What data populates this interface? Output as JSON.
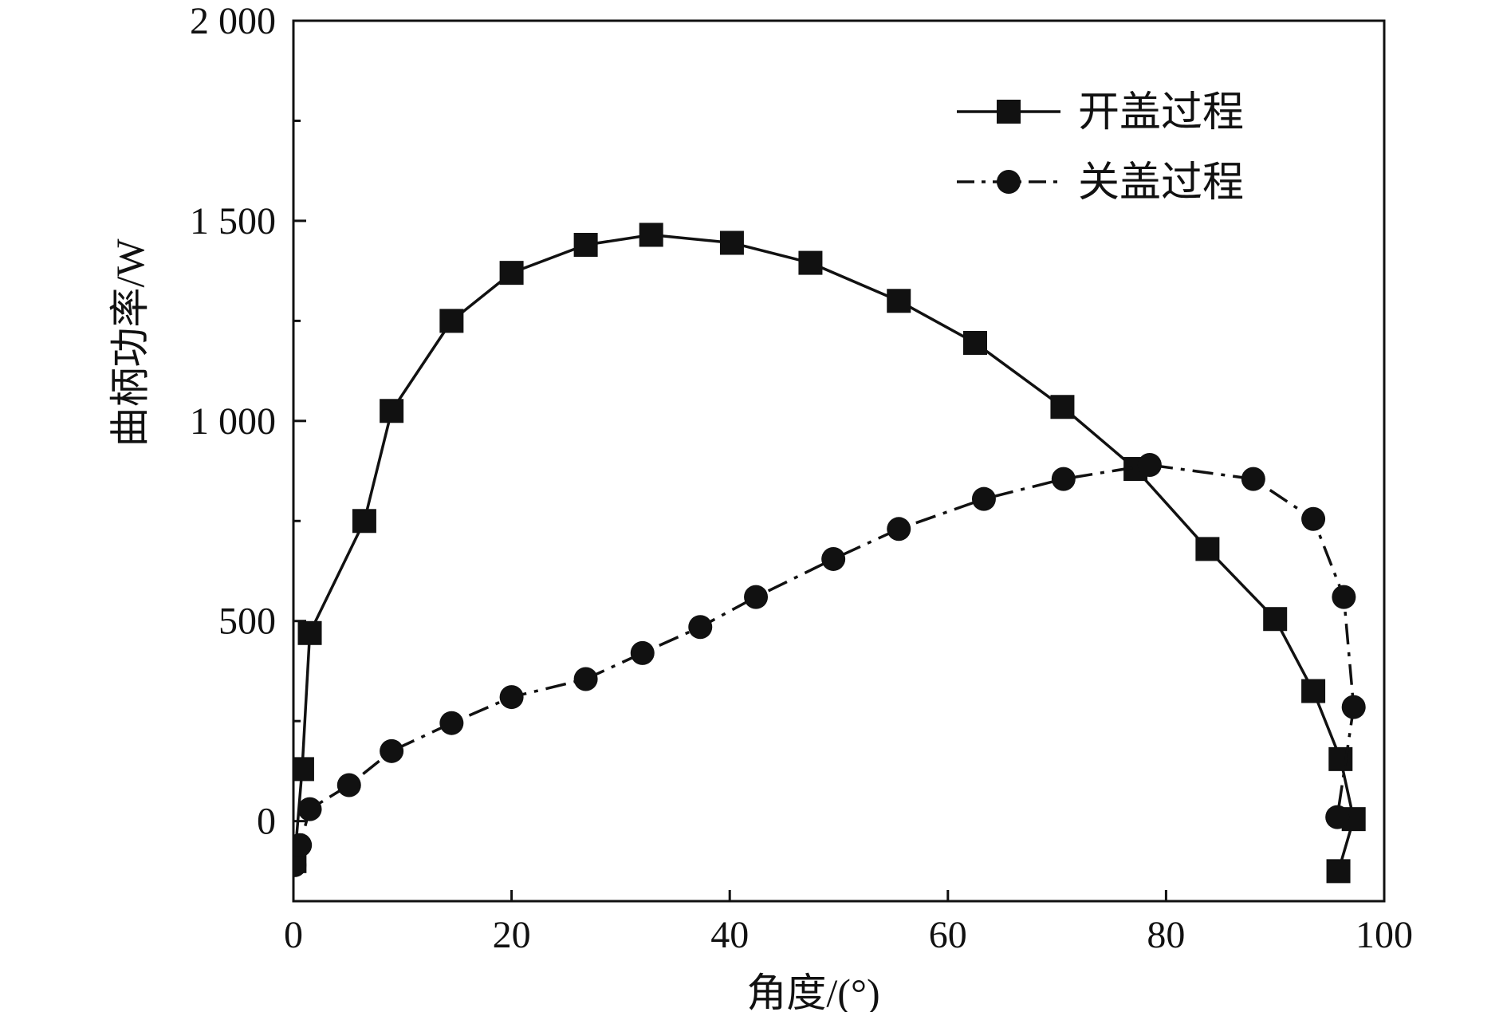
{
  "chart_data": {
    "type": "line",
    "title": "",
    "xlabel": "角度/(°)",
    "ylabel": "曲柄功率/W",
    "xlim": [
      0,
      100
    ],
    "ylim": [
      -200,
      2000
    ],
    "xticks": [
      0,
      20,
      40,
      60,
      80,
      100
    ],
    "xtick_labels": [
      "0",
      "20",
      "40",
      "60",
      "80",
      "100"
    ],
    "yticks": [
      0,
      500,
      1000,
      1500,
      2000
    ],
    "ytick_labels": [
      "0",
      "500",
      "1 000",
      "1 500",
      "2 000"
    ],
    "y_minor_step": 250,
    "grid": false,
    "legend_position": "top-right",
    "series": [
      {
        "name": "开盖过程",
        "line_style": "solid",
        "marker": "square",
        "color": "#111111",
        "x": [
          0.1,
          0.8,
          1.5,
          6.5,
          9.0,
          14.5,
          20.0,
          26.8,
          32.8,
          40.2,
          47.4,
          55.5,
          62.5,
          70.5,
          77.2,
          83.8,
          90.0,
          93.5,
          96.0,
          97.2,
          95.8
        ],
        "y": [
          -100,
          130,
          470,
          750,
          1025,
          1250,
          1370,
          1440,
          1465,
          1445,
          1395,
          1300,
          1195,
          1035,
          880,
          680,
          505,
          325,
          155,
          5,
          -125
        ]
      },
      {
        "name": "关盖过程",
        "line_style": "dashdot",
        "marker": "circle",
        "color": "#111111",
        "x": [
          0.1,
          0.6,
          1.5,
          5.1,
          9.0,
          14.5,
          20.0,
          26.8,
          32.0,
          37.3,
          42.4,
          49.5,
          55.5,
          63.3,
          70.6,
          78.5,
          88.0,
          93.5,
          96.3,
          97.2,
          95.7
        ],
        "y": [
          -110,
          -60,
          30,
          90,
          175,
          245,
          310,
          355,
          420,
          485,
          560,
          655,
          730,
          805,
          855,
          890,
          855,
          755,
          560,
          285,
          10
        ]
      }
    ]
  }
}
